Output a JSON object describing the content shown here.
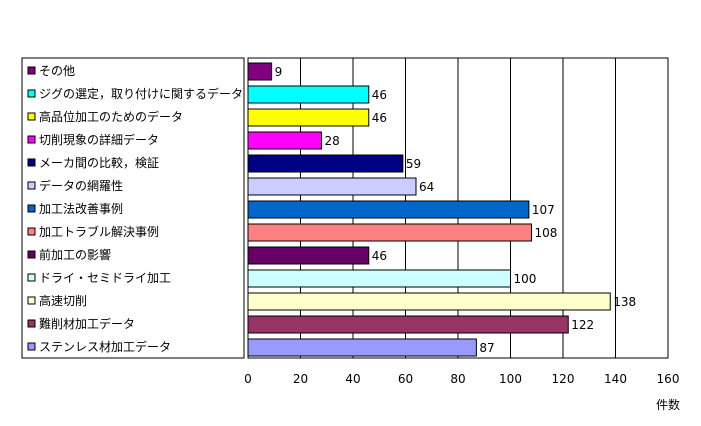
{
  "chart_data": {
    "type": "bar",
    "orientation": "horizontal",
    "categories": [
      "その他",
      "ジグの選定，取り付けに関するデータ",
      "高品位加工のためのデータ",
      "切削現象の詳細データ",
      "メーカ間の比較，検証",
      "データの網羅性",
      "加工法改善事例",
      "加工トラブル解決事例",
      "前加工の影響",
      "ドライ・セミドライ加工",
      "高速切削",
      "難削材加工データ",
      "ステンレス材加工データ"
    ],
    "values": [
      9,
      46,
      46,
      28,
      59,
      64,
      107,
      108,
      46,
      100,
      138,
      122,
      87
    ],
    "colors": [
      "#800080",
      "#00ffff",
      "#ffff00",
      "#ff00ff",
      "#000080",
      "#ccccff",
      "#0066cc",
      "#ff8080",
      "#660066",
      "#ccffff",
      "#ffffcc",
      "#993366",
      "#9999ff"
    ],
    "xlabel": "件数",
    "xlim": [
      0,
      160
    ],
    "xticks": [
      "0",
      "20",
      "40",
      "60",
      "80",
      "100",
      "120",
      "140",
      "160"
    ],
    "grid": true,
    "legend": "left"
  }
}
